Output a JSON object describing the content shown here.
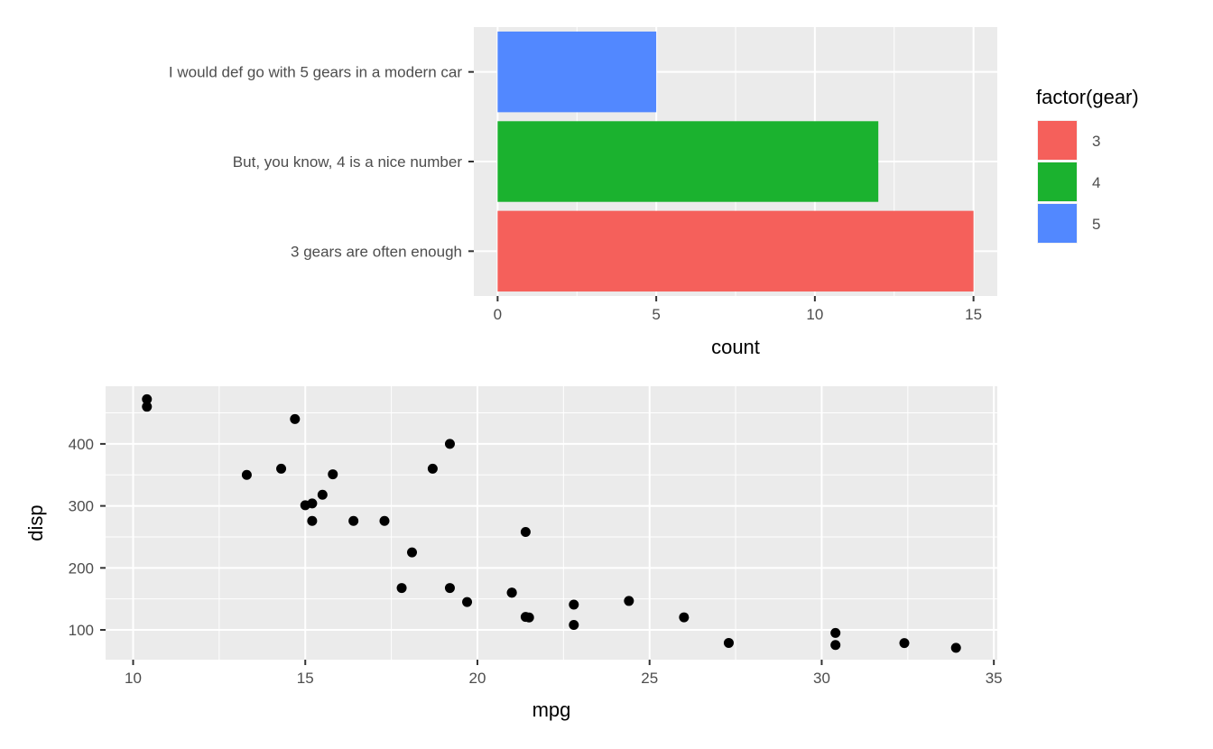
{
  "chart_data": [
    {
      "type": "bar",
      "orientation": "horizontal",
      "categories": [
        "3 gears are often enough",
        "But, you know, 4 is a nice number",
        "I would def go with 5 gears in a modern car"
      ],
      "values": [
        15,
        12,
        5
      ],
      "fill_levels": [
        "3",
        "4",
        "5"
      ],
      "xlabel": "count",
      "ylabel": "",
      "xlim": [
        -0.75,
        15.75
      ],
      "xticks": [
        0,
        5,
        10,
        15
      ],
      "grid": true,
      "legend": {
        "title": "factor(gear)",
        "placement": "right",
        "entries": [
          "3",
          "4",
          "5"
        ]
      },
      "colors": [
        "#F5605B",
        "#1BB22F",
        "#5288FF"
      ],
      "panel_background": "#EBEBEB"
    },
    {
      "type": "scatter",
      "xlabel": "mpg",
      "ylabel": "disp",
      "xlim": [
        9.2,
        35.1
      ],
      "ylim": [
        52,
        493
      ],
      "xticks": [
        10,
        15,
        20,
        25,
        30,
        35
      ],
      "yticks": [
        100,
        200,
        300,
        400
      ],
      "grid": true,
      "point_color": "#000000",
      "points": [
        [
          21.0,
          160
        ],
        [
          21.0,
          160
        ],
        [
          22.8,
          108
        ],
        [
          21.4,
          258
        ],
        [
          18.7,
          360
        ],
        [
          18.1,
          225
        ],
        [
          14.3,
          360
        ],
        [
          24.4,
          146.7
        ],
        [
          22.8,
          140.8
        ],
        [
          19.2,
          167.6
        ],
        [
          17.8,
          167.6
        ],
        [
          16.4,
          275.8
        ],
        [
          17.3,
          275.8
        ],
        [
          15.2,
          275.8
        ],
        [
          10.4,
          472
        ],
        [
          10.4,
          460
        ],
        [
          14.7,
          440
        ],
        [
          32.4,
          78.7
        ],
        [
          30.4,
          75.7
        ],
        [
          33.9,
          71.1
        ],
        [
          21.5,
          120.1
        ],
        [
          15.5,
          318
        ],
        [
          15.2,
          304
        ],
        [
          13.3,
          350
        ],
        [
          19.2,
          400
        ],
        [
          27.3,
          79
        ],
        [
          26.0,
          120.3
        ],
        [
          30.4,
          95.1
        ],
        [
          15.8,
          351
        ],
        [
          19.7,
          145
        ],
        [
          15.0,
          301
        ],
        [
          21.4,
          121
        ]
      ]
    }
  ]
}
